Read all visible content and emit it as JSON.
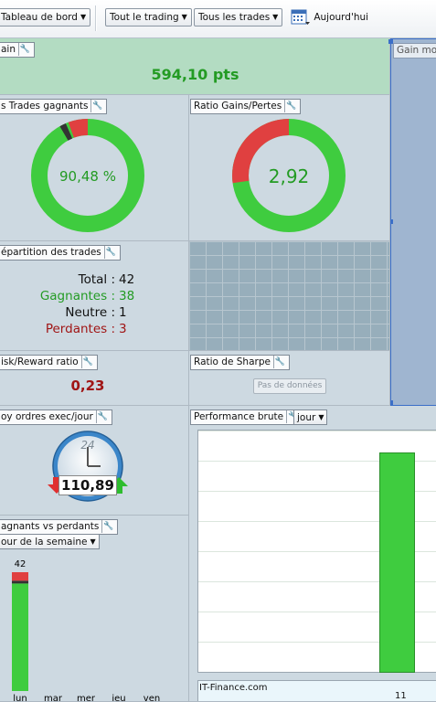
{
  "toolbar": {
    "dashboard": "Tableau de bord",
    "trading": "Tout le trading",
    "trades": "Tous les trades",
    "today": "Aujourd'hui"
  },
  "gain": {
    "title": "ain",
    "value": "594,10 pts"
  },
  "gain_moyen": {
    "title": "Gain moy"
  },
  "win_rate": {
    "title": "s Trades gagnants",
    "value": "90,48 %",
    "ratio": 0.9048
  },
  "gain_loss": {
    "title": "Ratio Gains/Pertes",
    "value": "2,92",
    "ratio": 0.745
  },
  "repartition": {
    "title": "épartition des trades",
    "total_label": "Total :",
    "total": "42",
    "winners_label": "Gagnantes :",
    "winners": "38",
    "neutral_label": "Neutre :",
    "neutral": "1",
    "losers_label": "Perdantes :",
    "losers": "3"
  },
  "risk_reward": {
    "title": "isk/Reward ratio",
    "value": "0,23"
  },
  "sharpe": {
    "title": "Ratio de Sharpe",
    "no_data": "Pas de données"
  },
  "orders": {
    "title": "oy ordres exec/jour",
    "value": "110,89",
    "clock_label": "24"
  },
  "performance": {
    "title": "Performance brute",
    "period": "jour",
    "watermark": "IT-Finance.com",
    "x_tick": "11"
  },
  "win_vs_loss": {
    "title": "agnants vs perdants",
    "period": "our de la semaine",
    "days": [
      "lun",
      "mar",
      "mer",
      "jeu",
      "ven"
    ],
    "top_label": "42"
  },
  "colors": {
    "green": "#3fcc3f",
    "red": "#e04040",
    "dark": "#333333"
  },
  "chart_data": [
    {
      "type": "bar",
      "title": "agnants vs perdants",
      "categories": [
        "lun",
        "mar",
        "mer",
        "jeu",
        "ven"
      ],
      "series": [
        {
          "values": [
            38,
            0,
            0,
            0,
            0
          ]
        },
        {
          "values": [
            3,
            0,
            0,
            0,
            0
          ]
        },
        {
          "values": [
            1,
            0,
            0,
            0,
            0
          ]
        }
      ]
    }
  ]
}
